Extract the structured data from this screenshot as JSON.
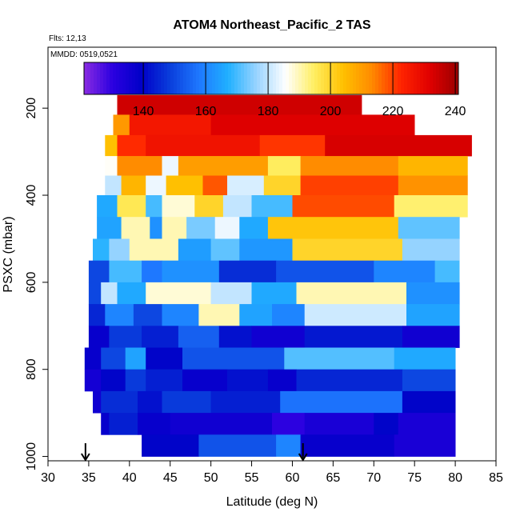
{
  "chart_data": {
    "type": "heatmap",
    "title": "ATOM4 Northeast_Pacific_2 TAS",
    "flights_text": "Flts: 12,13",
    "mmdd_text": "MMDD: 0519,0521",
    "xlabel": "Latitude (deg N)",
    "ylabel": "PSXC (mbar)",
    "xlim": [
      30,
      85
    ],
    "ylim": [
      1010,
      60
    ],
    "y_reversed": true,
    "x_ticks": [
      30,
      35,
      40,
      45,
      50,
      55,
      60,
      65,
      70,
      75,
      80,
      85
    ],
    "y_ticks": [
      200,
      400,
      600,
      800,
      1000
    ],
    "colorbar": {
      "range": [
        121,
        241
      ],
      "ticks": [
        140,
        160,
        180,
        200,
        220,
        240
      ],
      "colors": [
        "#8a2be2",
        "#2a00e0",
        "#0000c8",
        "#0a3fdc",
        "#1e78ff",
        "#20b0ff",
        "#9ad4ff",
        "#ffffff",
        "#ffee60",
        "#ffc000",
        "#ff8a00",
        "#ff2400",
        "#e00000",
        "#9a0000"
      ]
    },
    "arrows_latitude": [
      34.6,
      61.3
    ],
    "rows": [
      {
        "p_top": 170,
        "p_bot": 215,
        "segments": [
          [
            38.5,
            68.5,
            234
          ]
        ]
      },
      {
        "p_top": 215,
        "p_bot": 262,
        "segments": [
          [
            38.0,
            40.0,
            211
          ],
          [
            40.0,
            50.0,
            226
          ],
          [
            50.0,
            75.0,
            232
          ]
        ]
      },
      {
        "p_top": 262,
        "p_bot": 310,
        "segments": [
          [
            37.0,
            38.5,
            204
          ],
          [
            38.5,
            42.0,
            222
          ],
          [
            42.0,
            56.0,
            227
          ],
          [
            56.0,
            64.0,
            221
          ],
          [
            64.0,
            82.0,
            233
          ]
        ]
      },
      {
        "p_top": 310,
        "p_bot": 355,
        "segments": [
          [
            37.0,
            38.5,
            186
          ],
          [
            38.5,
            44.0,
            213
          ],
          [
            44.0,
            46.0,
            184
          ],
          [
            46.0,
            57.0,
            210
          ],
          [
            57.0,
            61.0,
            195
          ],
          [
            61.0,
            73.0,
            213
          ],
          [
            73.0,
            81.5,
            206
          ]
        ]
      },
      {
        "p_top": 355,
        "p_bot": 400,
        "segments": [
          [
            37.0,
            39.0,
            180
          ],
          [
            39.0,
            42.0,
            206
          ],
          [
            42.0,
            44.5,
            184
          ],
          [
            44.5,
            49.0,
            204
          ],
          [
            49.0,
            52.0,
            218
          ],
          [
            52.0,
            56.5,
            182
          ],
          [
            56.5,
            61.0,
            200
          ],
          [
            61.0,
            73.0,
            220
          ],
          [
            73.0,
            81.5,
            212
          ]
        ]
      },
      {
        "p_top": 400,
        "p_bot": 450,
        "segments": [
          [
            36.0,
            38.5,
            166
          ],
          [
            38.5,
            42.0,
            196
          ],
          [
            42.0,
            44.0,
            170
          ],
          [
            44.0,
            48.0,
            188
          ],
          [
            48.0,
            51.5,
            200
          ],
          [
            51.5,
            55.0,
            180
          ],
          [
            55.0,
            60.0,
            170
          ],
          [
            60.0,
            72.5,
            219
          ],
          [
            72.5,
            81.5,
            194
          ]
        ]
      },
      {
        "p_top": 450,
        "p_bot": 500,
        "segments": [
          [
            36.0,
            39.0,
            165
          ],
          [
            39.0,
            42.5,
            190
          ],
          [
            42.5,
            44.0,
            162
          ],
          [
            44.0,
            47.0,
            190
          ],
          [
            47.0,
            50.5,
            174
          ],
          [
            50.5,
            53.5,
            184
          ],
          [
            53.5,
            57.0,
            166
          ],
          [
            57.0,
            73.0,
            203
          ],
          [
            73.0,
            80.5,
            172
          ]
        ]
      },
      {
        "p_top": 500,
        "p_bot": 550,
        "segments": [
          [
            35.5,
            37.5,
            168
          ],
          [
            37.5,
            40.0,
            176
          ],
          [
            40.0,
            46.0,
            190
          ],
          [
            46.0,
            50.0,
            164
          ],
          [
            50.0,
            53.5,
            172
          ],
          [
            53.5,
            60.0,
            163
          ],
          [
            60.0,
            73.5,
            200
          ],
          [
            73.5,
            80.5,
            176
          ]
        ]
      },
      {
        "p_top": 550,
        "p_bot": 600,
        "segments": [
          [
            35.0,
            37.5,
            150
          ],
          [
            37.5,
            41.5,
            170
          ],
          [
            41.5,
            44.0,
            158
          ],
          [
            44.0,
            51.0,
            162
          ],
          [
            51.0,
            58.0,
            146
          ],
          [
            58.0,
            70.0,
            152
          ],
          [
            70.0,
            77.5,
            160
          ],
          [
            77.5,
            80.5,
            170
          ]
        ]
      },
      {
        "p_top": 600,
        "p_bot": 650,
        "segments": [
          [
            35.0,
            36.5,
            150
          ],
          [
            36.5,
            38.5,
            180
          ],
          [
            38.5,
            42.0,
            166
          ],
          [
            42.0,
            50.0,
            188
          ],
          [
            50.0,
            55.0,
            180
          ],
          [
            55.0,
            60.5,
            166
          ],
          [
            60.5,
            74.0,
            190
          ],
          [
            74.0,
            80.5,
            162
          ]
        ]
      },
      {
        "p_top": 650,
        "p_bot": 700,
        "segments": [
          [
            35.0,
            37.0,
            145
          ],
          [
            37.0,
            40.5,
            160
          ],
          [
            40.5,
            44.0,
            150
          ],
          [
            44.0,
            48.5,
            160
          ],
          [
            48.5,
            53.5,
            190
          ],
          [
            53.5,
            57.5,
            165
          ],
          [
            57.5,
            61.5,
            160
          ],
          [
            61.5,
            74.0,
            181
          ],
          [
            74.0,
            80.5,
            165
          ]
        ]
      },
      {
        "p_top": 700,
        "p_bot": 750,
        "segments": [
          [
            35.0,
            37.5,
            138
          ],
          [
            37.5,
            41.5,
            148
          ],
          [
            41.5,
            46.0,
            144
          ],
          [
            46.0,
            51.0,
            154
          ],
          [
            51.0,
            55.0,
            142
          ],
          [
            55.0,
            61.5,
            136
          ],
          [
            61.5,
            73.5,
            143
          ],
          [
            73.5,
            80.5,
            136
          ]
        ]
      },
      {
        "p_top": 750,
        "p_bot": 800,
        "segments": [
          [
            34.5,
            36.5,
            138
          ],
          [
            36.5,
            39.5,
            150
          ],
          [
            39.5,
            42.0,
            165
          ],
          [
            42.0,
            46.5,
            140
          ],
          [
            46.5,
            59.0,
            152
          ],
          [
            59.0,
            72.5,
            171
          ],
          [
            72.5,
            80.0,
            166
          ]
        ]
      },
      {
        "p_top": 800,
        "p_bot": 850,
        "segments": [
          [
            34.5,
            36.5,
            135
          ],
          [
            36.5,
            39.5,
            140
          ],
          [
            39.5,
            42.0,
            148
          ],
          [
            42.0,
            46.5,
            144
          ],
          [
            46.5,
            52.0,
            138
          ],
          [
            52.0,
            57.0,
            142
          ],
          [
            57.0,
            60.5,
            138
          ],
          [
            60.5,
            73.5,
            145
          ],
          [
            73.5,
            80.0,
            150
          ]
        ]
      },
      {
        "p_top": 850,
        "p_bot": 900,
        "segments": [
          [
            35.5,
            36.5,
            136
          ],
          [
            36.5,
            41.0,
            146
          ],
          [
            41.0,
            44.0,
            142
          ],
          [
            44.0,
            50.0,
            148
          ],
          [
            50.0,
            58.5,
            144
          ],
          [
            58.5,
            73.5,
            157
          ],
          [
            73.5,
            80.0,
            140
          ]
        ]
      },
      {
        "p_top": 900,
        "p_bot": 950,
        "segments": [
          [
            36.5,
            37.5,
            138
          ],
          [
            37.5,
            41.0,
            144
          ],
          [
            41.0,
            45.0,
            138
          ],
          [
            45.0,
            57.5,
            136
          ],
          [
            57.5,
            61.5,
            130
          ],
          [
            61.5,
            70.0,
            134
          ],
          [
            70.0,
            73.0,
            140
          ],
          [
            73.0,
            80.0,
            134
          ]
        ]
      },
      {
        "p_top": 950,
        "p_bot": 1000,
        "segments": [
          [
            41.5,
            48.5,
            140
          ],
          [
            48.5,
            58.0,
            152
          ],
          [
            58.0,
            61.0,
            160
          ],
          [
            61.0,
            72.5,
            138
          ],
          [
            72.5,
            80.0,
            134
          ]
        ]
      }
    ]
  }
}
